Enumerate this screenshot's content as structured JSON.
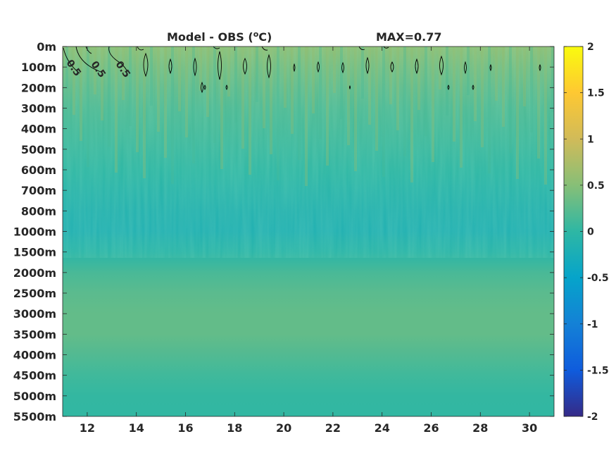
{
  "chart_data": {
    "type": "heatmap",
    "title": "Model - OBS (",
    "title_unit_sup": "o",
    "title_unit_tail": "C)",
    "max_label": "MAX=0.77",
    "xlabel": "",
    "ylabel": "",
    "xlim": [
      11,
      31
    ],
    "x_ticks": [
      12,
      14,
      16,
      18,
      20,
      22,
      24,
      26,
      28,
      30
    ],
    "x_tick_labels": [
      "12",
      "14",
      "16",
      "18",
      "20",
      "22",
      "24",
      "26",
      "28",
      "30"
    ],
    "y_tick_labels": [
      "0m",
      "100m",
      "200m",
      "300m",
      "400m",
      "500m",
      "600m",
      "700m",
      "800m",
      "1000m",
      "1500m",
      "2000m",
      "2500m",
      "3000m",
      "3500m",
      "4000m",
      "4500m",
      "5000m",
      "5500m"
    ],
    "depth_profile": [
      0.55,
      0.4,
      0.28,
      0.18,
      0.12,
      0.06,
      0.0,
      -0.08,
      -0.15,
      -0.18,
      -0.05,
      0.15,
      0.25,
      0.3,
      0.3,
      0.2,
      0.1,
      0.03,
      0.02
    ],
    "contour_level": 0.5,
    "contour_labels": [
      "0.5",
      "0.5",
      "0.5"
    ],
    "colorbar": {
      "range": [
        -2,
        2
      ],
      "ticks": [
        2,
        1.5,
        1,
        0.5,
        0,
        -0.5,
        -1,
        -1.5,
        -2
      ],
      "tick_labels": [
        "2",
        "1.5",
        "1",
        "0.5",
        "0",
        "-0.5",
        "-1",
        "-1.5",
        "-2"
      ],
      "colormap": "parula",
      "colors": [
        "#352a87",
        "#0f5cdd",
        "#1481d6",
        "#06a4ca",
        "#2eb7a4",
        "#87bf77",
        "#d1bb59",
        "#fec832",
        "#f9fb0e"
      ]
    }
  }
}
